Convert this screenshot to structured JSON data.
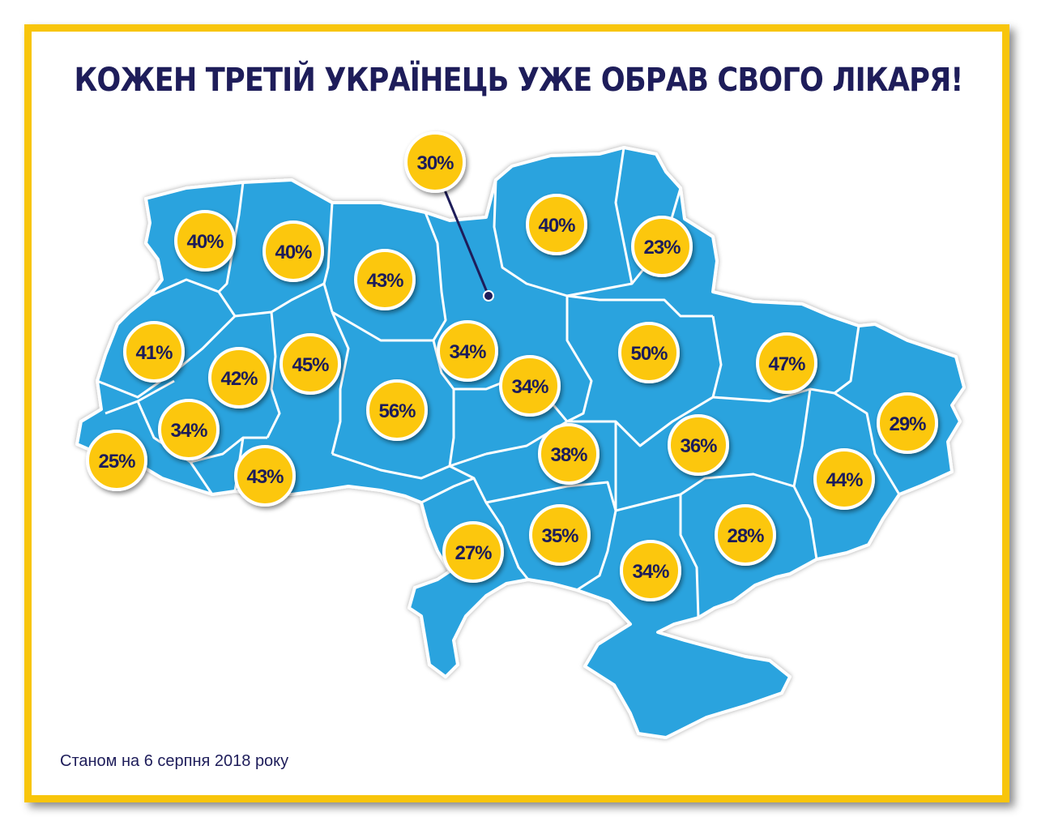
{
  "title": "КОЖЕН ТРЕТІЙ УКРАЇНЕЦЬ УЖЕ ОБРАВ СВОГО ЛІКАРЯ!",
  "footnote": "Станом на 6 серпня 2018 року",
  "colors": {
    "frame": "#f8c50b",
    "map_fill": "#29a3de",
    "badge_fill": "#fcc70a",
    "text": "#1e1d5a"
  },
  "regions": [
    {
      "value": "40%"
    },
    {
      "value": "40%"
    },
    {
      "value": "43%"
    },
    {
      "value": "30%"
    },
    {
      "value": "40%"
    },
    {
      "value": "23%"
    },
    {
      "value": "41%"
    },
    {
      "value": "42%"
    },
    {
      "value": "45%"
    },
    {
      "value": "34%"
    },
    {
      "value": "34%"
    },
    {
      "value": "50%"
    },
    {
      "value": "47%"
    },
    {
      "value": "56%"
    },
    {
      "value": "34%"
    },
    {
      "value": "25%"
    },
    {
      "value": "43%"
    },
    {
      "value": "38%"
    },
    {
      "value": "36%"
    },
    {
      "value": "29%"
    },
    {
      "value": "44%"
    },
    {
      "value": "27%"
    },
    {
      "value": "35%"
    },
    {
      "value": "28%"
    },
    {
      "value": "34%"
    }
  ]
}
